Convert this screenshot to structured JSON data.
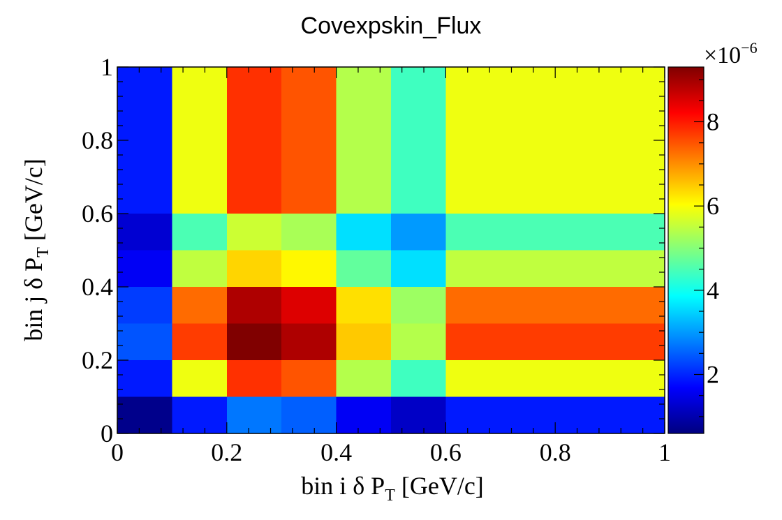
{
  "chart_data": {
    "type": "heatmap",
    "title": "Covexpskin_Flux",
    "xlabel": {
      "pre": "bin i  δ P",
      "sub": "T",
      "post": " [GeV/c]"
    },
    "ylabel": {
      "pre": "bin j  δ P",
      "sub": "T",
      "post": " [GeV/c]"
    },
    "x_edges": [
      0,
      0.1,
      0.2,
      0.3,
      0.4,
      0.5,
      0.6,
      1.0
    ],
    "y_edges": [
      0,
      0.1,
      0.2,
      0.3,
      0.4,
      0.5,
      0.6,
      1.0
    ],
    "xlim": [
      0,
      1
    ],
    "ylim": [
      0,
      1
    ],
    "x_ticks": [
      {
        "value": 0,
        "label": "0"
      },
      {
        "value": 0.2,
        "label": "0.2"
      },
      {
        "value": 0.4,
        "label": "0.4"
      },
      {
        "value": 0.6,
        "label": "0.6"
      },
      {
        "value": 0.8,
        "label": "0.8"
      },
      {
        "value": 1,
        "label": "1"
      }
    ],
    "y_ticks": [
      {
        "value": 0,
        "label": "0"
      },
      {
        "value": 0.2,
        "label": "0.2"
      },
      {
        "value": 0.4,
        "label": "0.4"
      },
      {
        "value": 0.6,
        "label": "0.6"
      },
      {
        "value": 0.8,
        "label": "0.8"
      },
      {
        "value": 1,
        "label": "1"
      }
    ],
    "values_unit_multiplier": "×10^-6",
    "z_range": [
      0.6,
      9.3
    ],
    "z_ticks": [
      {
        "value": 2,
        "label": "2"
      },
      {
        "value": 4,
        "label": "4"
      },
      {
        "value": 6,
        "label": "6"
      },
      {
        "value": 8,
        "label": "8"
      }
    ],
    "colorbar": {
      "exponent_base": "×10",
      "exponent_power": "−6",
      "colormap": "jet"
    },
    "values": [
      [
        0.7,
        1.9,
        2.7,
        2.5,
        1.6,
        1.2,
        1.9
      ],
      [
        1.9,
        5.9,
        7.8,
        7.5,
        5.4,
        4.4,
        5.9
      ],
      [
        2.4,
        7.7,
        9.3,
        8.9,
        6.5,
        5.4,
        7.7
      ],
      [
        2.2,
        7.3,
        8.9,
        8.5,
        6.3,
        5.2,
        7.3
      ],
      [
        1.6,
        5.5,
        6.4,
        6.1,
        4.7,
        3.6,
        5.5
      ],
      [
        1.3,
        4.5,
        5.6,
        5.3,
        3.6,
        3.0,
        4.5
      ],
      [
        1.9,
        5.9,
        7.8,
        7.5,
        5.4,
        4.4,
        5.9
      ]
    ]
  }
}
